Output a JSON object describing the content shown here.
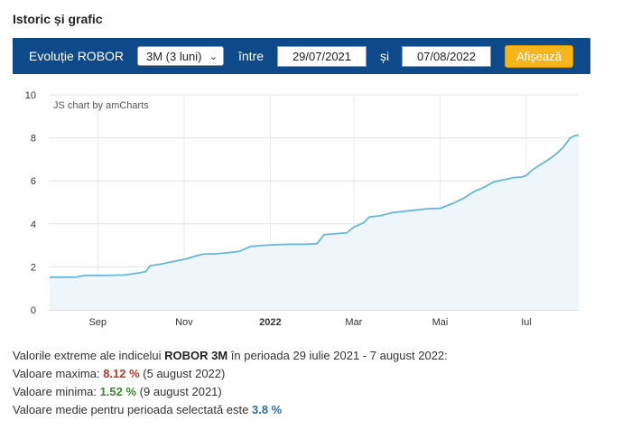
{
  "section_title": "Istoric și grafic",
  "toolbar": {
    "evolution_label": "Evoluție ROBOR",
    "period_select": "3M (3 luni)",
    "between_label": "între",
    "start_date": "29/07/2021",
    "and_label": "și",
    "end_date": "07/08/2022",
    "show_button": "Afișează"
  },
  "chart_data": {
    "type": "area",
    "credit": "JS chart by amCharts",
    "xlabel": "",
    "ylabel": "",
    "ylim": [
      0,
      10
    ],
    "yticks": [
      0,
      2,
      4,
      6,
      8,
      10
    ],
    "xticks": [
      {
        "date": "2021-09-01",
        "label": "Sep",
        "bold": false
      },
      {
        "date": "2021-11-01",
        "label": "Nov",
        "bold": false
      },
      {
        "date": "2022-01-01",
        "label": "2022",
        "bold": true
      },
      {
        "date": "2022-03-01",
        "label": "Mar",
        "bold": false
      },
      {
        "date": "2022-05-01",
        "label": "Mai",
        "bold": false
      },
      {
        "date": "2022-07-01",
        "label": "Iul",
        "bold": false
      }
    ],
    "xlim": [
      "2021-07-29",
      "2022-08-07"
    ],
    "grid": true,
    "line_color": "#67b7dc",
    "fill_color": "#eef6fb",
    "series": [
      {
        "points": [
          [
            "2021-07-29",
            1.52
          ],
          [
            "2021-08-09",
            1.52
          ],
          [
            "2021-08-16",
            1.52
          ],
          [
            "2021-08-23",
            1.6
          ],
          [
            "2021-09-06",
            1.6
          ],
          [
            "2021-09-20",
            1.62
          ],
          [
            "2021-09-30",
            1.72
          ],
          [
            "2021-10-05",
            1.78
          ],
          [
            "2021-10-08",
            2.05
          ],
          [
            "2021-10-15",
            2.12
          ],
          [
            "2021-10-22",
            2.22
          ],
          [
            "2021-11-01",
            2.35
          ],
          [
            "2021-11-05",
            2.42
          ],
          [
            "2021-11-10",
            2.52
          ],
          [
            "2021-11-15",
            2.6
          ],
          [
            "2021-11-22",
            2.6
          ],
          [
            "2021-12-01",
            2.65
          ],
          [
            "2021-12-10",
            2.72
          ],
          [
            "2021-12-18",
            2.95
          ],
          [
            "2021-12-27",
            3.0
          ],
          [
            "2022-01-05",
            3.03
          ],
          [
            "2022-01-15",
            3.05
          ],
          [
            "2022-01-25",
            3.05
          ],
          [
            "2022-02-03",
            3.08
          ],
          [
            "2022-02-08",
            3.5
          ],
          [
            "2022-02-18",
            3.55
          ],
          [
            "2022-02-24",
            3.58
          ],
          [
            "2022-03-01",
            3.85
          ],
          [
            "2022-03-08",
            4.05
          ],
          [
            "2022-03-12",
            4.32
          ],
          [
            "2022-03-20",
            4.38
          ],
          [
            "2022-03-28",
            4.52
          ],
          [
            "2022-04-05",
            4.58
          ],
          [
            "2022-04-15",
            4.65
          ],
          [
            "2022-04-22",
            4.7
          ],
          [
            "2022-05-01",
            4.72
          ],
          [
            "2022-05-10",
            4.95
          ],
          [
            "2022-05-18",
            5.2
          ],
          [
            "2022-05-25",
            5.5
          ],
          [
            "2022-06-01",
            5.7
          ],
          [
            "2022-06-08",
            5.95
          ],
          [
            "2022-06-15",
            6.05
          ],
          [
            "2022-06-22",
            6.15
          ],
          [
            "2022-06-28",
            6.18
          ],
          [
            "2022-07-01",
            6.25
          ],
          [
            "2022-07-05",
            6.5
          ],
          [
            "2022-07-12",
            6.8
          ],
          [
            "2022-07-18",
            7.05
          ],
          [
            "2022-07-22",
            7.25
          ],
          [
            "2022-07-27",
            7.55
          ],
          [
            "2022-08-01",
            8.0
          ],
          [
            "2022-08-05",
            8.12
          ],
          [
            "2022-08-07",
            8.12
          ]
        ]
      }
    ]
  },
  "summary": {
    "line1_prefix": "Valorile extreme ale indicelui ",
    "index_name": "ROBOR 3M",
    "line1_suffix": " în perioada 29 iulie 2021 - 7 august 2022:",
    "max_label": "Valoare maxima: ",
    "max_value": "8.12 %",
    "max_date": " (5 august 2022)",
    "min_label": "Valoare minima: ",
    "min_value": "1.52 %",
    "min_date": " (9 august 2021)",
    "avg_label": "Valoare medie pentru perioada selectată este ",
    "avg_value": "3.8 %"
  }
}
